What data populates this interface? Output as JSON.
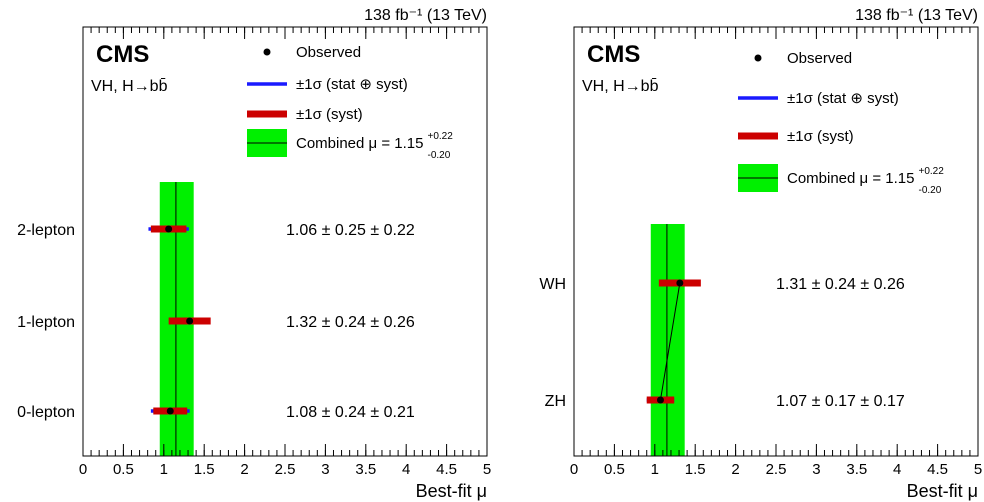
{
  "chart_data": [
    {
      "type": "scatter",
      "panel": "left",
      "lumi_label": "138 fb⁻¹ (13 TeV)",
      "experiment_label": "CMS",
      "process_label": "VH, H→bb̄",
      "xlabel": "Best-fit μ",
      "xlim": [
        0,
        5
      ],
      "x_ticks": [
        "0",
        "0.5",
        "1",
        "1.5",
        "2",
        "2.5",
        "3",
        "3.5",
        "4",
        "4.5",
        "5"
      ],
      "legend": {
        "placement": "top-right",
        "observed": "Observed",
        "total": "±1σ (stat ⊕ syst)",
        "syst": "±1σ (syst)",
        "combined": "Combined μ = 1.15",
        "combined_up": "+0.22",
        "combined_down": "-0.20"
      },
      "combined": {
        "mu": 1.15,
        "err_up": 0.22,
        "err_down": 0.2
      },
      "connect_points": false,
      "categories": [
        "2-lepton",
        "1-lepton",
        "0-lepton"
      ],
      "points": [
        {
          "label": "2-lepton",
          "mu": 1.06,
          "stat_syst_err": 0.25,
          "syst_err": 0.22,
          "value_text": "1.06 ± 0.25 ± 0.22"
        },
        {
          "label": "1-lepton",
          "mu": 1.32,
          "stat_syst_err": 0.24,
          "syst_err": 0.26,
          "value_text": "1.32 ± 0.24 ± 0.26"
        },
        {
          "label": "0-lepton",
          "mu": 1.08,
          "stat_syst_err": 0.24,
          "syst_err": 0.21,
          "value_text": "1.08 ± 0.24 ± 0.21"
        }
      ],
      "colors": {
        "total": "#1a1aff",
        "syst": "#cc0000",
        "band": "#00f000",
        "point": "#000000"
      }
    },
    {
      "type": "scatter",
      "panel": "right",
      "lumi_label": "138 fb⁻¹ (13 TeV)",
      "experiment_label": "CMS",
      "process_label": "VH, H→bb̄",
      "xlabel": "Best-fit μ",
      "xlim": [
        0,
        5
      ],
      "x_ticks": [
        "0",
        "0.5",
        "1",
        "1.5",
        "2",
        "2.5",
        "3",
        "3.5",
        "4",
        "4.5",
        "5"
      ],
      "legend": {
        "placement": "top-right",
        "observed": "Observed",
        "total": "±1σ (stat ⊕ syst)",
        "syst": "±1σ (syst)",
        "combined": "Combined μ = 1.15",
        "combined_up": "+0.22",
        "combined_down": "-0.20"
      },
      "combined": {
        "mu": 1.15,
        "err_up": 0.22,
        "err_down": 0.2
      },
      "connect_points": true,
      "categories": [
        "WH",
        "ZH"
      ],
      "points": [
        {
          "label": "WH",
          "mu": 1.31,
          "stat_syst_err": 0.24,
          "syst_err": 0.26,
          "value_text": "1.31 ± 0.24 ± 0.26"
        },
        {
          "label": "ZH",
          "mu": 1.07,
          "stat_syst_err": 0.17,
          "syst_err": 0.17,
          "value_text": "1.07 ± 0.17 ± 0.17"
        }
      ],
      "colors": {
        "total": "#1a1aff",
        "syst": "#cc0000",
        "band": "#00f000",
        "point": "#000000"
      }
    }
  ]
}
